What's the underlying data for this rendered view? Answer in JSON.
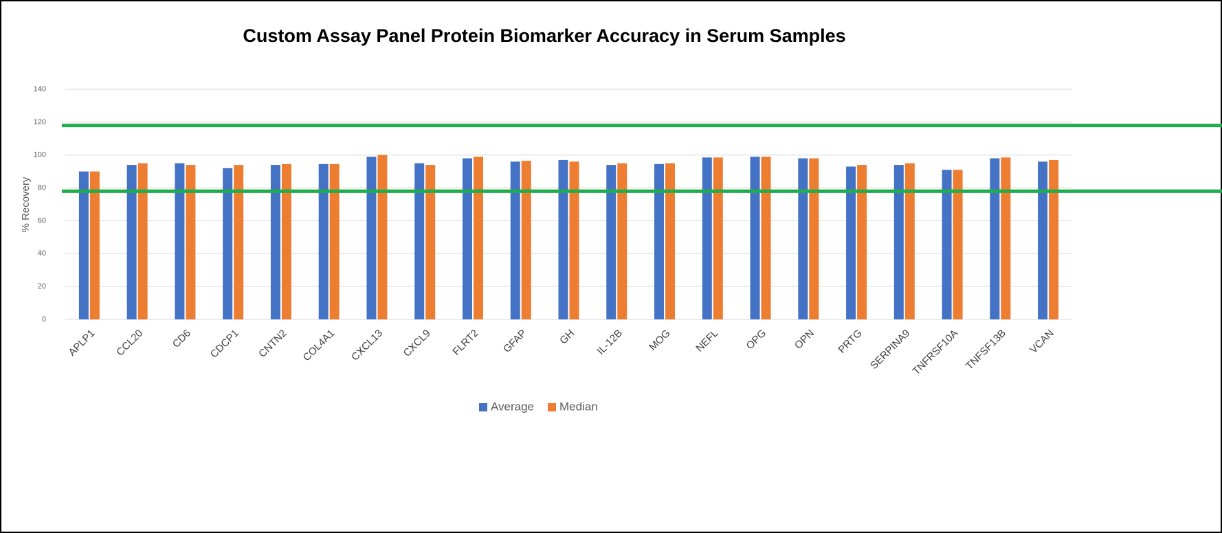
{
  "chart_data": {
    "type": "bar",
    "title": "Custom Assay Panel Protein Biomarker Accuracy in Serum Samples",
    "y_label": "% Recovery",
    "categories": [
      "APLP1",
      "CCL20",
      "CD6",
      "CDCP1",
      "CNTN2",
      "COL4A1",
      "CXCL13",
      "CXCL9",
      "FLRT2",
      "GFAP",
      "GH",
      "IL-12B",
      "MOG",
      "NEFL",
      "OPG",
      "OPN",
      "PRTG",
      "SERPINA9",
      "TNFRSF10A",
      "TNFSF13B",
      "VCAN"
    ],
    "series": [
      {
        "name": "Average",
        "color": "#4472c4",
        "values": [
          90,
          94,
          95,
          92,
          94,
          94.5,
          99,
          95,
          98,
          96,
          97,
          94,
          94.5,
          98.5,
          99,
          98,
          93,
          94,
          91,
          98,
          96
        ]
      },
      {
        "name": "Median",
        "color": "#ed7d31",
        "values": [
          90,
          95,
          94,
          94,
          94.5,
          94.5,
          100,
          94,
          99,
          96.5,
          96,
          95,
          95,
          98.5,
          99,
          98,
          94,
          95,
          91,
          98.5,
          97
        ]
      }
    ],
    "reference_lines": [
      {
        "value": 118,
        "color": "#1fae4b"
      },
      {
        "value": 78,
        "color": "#1fae4b"
      }
    ],
    "ylim": [
      0,
      140
    ],
    "yticks": [
      0,
      20,
      40,
      60,
      80,
      100,
      120,
      140
    ],
    "grid": true,
    "legend": "bottom"
  }
}
